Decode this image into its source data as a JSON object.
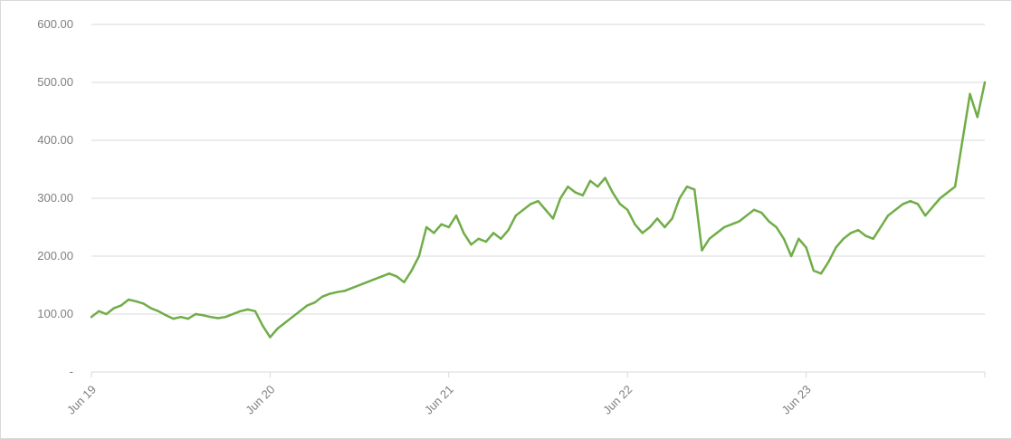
{
  "chart_data": {
    "type": "line",
    "title": "",
    "xlabel": "",
    "ylabel": "",
    "ylim": [
      0,
      600
    ],
    "y_ticks": [
      {
        "value": 0,
        "label": "-"
      },
      {
        "value": 100,
        "label": "100.00"
      },
      {
        "value": 200,
        "label": "200.00"
      },
      {
        "value": 300,
        "label": "300.00"
      },
      {
        "value": 400,
        "label": "400.00"
      },
      {
        "value": 500,
        "label": "500.00"
      },
      {
        "value": 600,
        "label": "600.00"
      }
    ],
    "x_ticks": [
      "Jun 19",
      "Jun 20",
      "Jun 21",
      "Jun 22",
      "Jun 23"
    ],
    "grid": "horizontal",
    "legend": "none",
    "color": "#70ad47",
    "x_unit": "months since Jun 19",
    "series": [
      {
        "x": [
          0,
          0.5,
          1,
          1.5,
          2,
          2.5,
          3,
          3.5,
          4,
          4.5,
          5,
          5.5,
          6,
          6.5,
          7,
          7.5,
          8,
          8.5,
          9,
          9.5,
          10,
          10.5,
          11,
          11.5,
          12,
          12.5,
          13,
          13.5,
          14,
          14.5,
          15,
          15.5,
          16,
          16.5,
          17,
          17.5,
          18,
          18.5,
          19,
          19.5,
          20,
          20.5,
          21,
          21.5,
          22,
          22.5,
          23,
          23.5,
          24,
          24.5,
          25,
          25.5,
          26,
          26.5,
          27,
          27.5,
          28,
          28.5,
          29,
          29.5,
          30,
          30.5,
          31,
          31.5,
          32,
          32.5,
          33,
          33.5,
          34,
          34.5,
          35,
          35.5,
          36,
          36.5,
          37,
          37.5,
          38,
          38.5,
          39,
          39.5,
          40,
          40.5,
          41,
          41.5,
          42,
          42.5,
          43,
          43.5,
          44,
          44.5,
          45,
          45.5,
          46,
          46.5,
          47,
          47.5,
          48,
          48.5,
          49,
          49.5,
          50,
          50.5,
          51,
          51.5,
          52,
          52.5,
          53,
          53.5,
          54,
          54.5,
          55,
          55.5,
          56,
          56.5,
          57,
          57.5,
          58,
          58.5,
          59,
          59.5,
          60
        ],
        "values": [
          95,
          105,
          100,
          110,
          115,
          125,
          122,
          118,
          110,
          105,
          98,
          92,
          95,
          92,
          100,
          98,
          95,
          93,
          95,
          100,
          105,
          108,
          105,
          80,
          60,
          75,
          85,
          95,
          105,
          115,
          120,
          130,
          135,
          138,
          140,
          145,
          150,
          155,
          160,
          165,
          170,
          165,
          155,
          175,
          200,
          250,
          240,
          255,
          250,
          270,
          240,
          220,
          230,
          225,
          240,
          230,
          245,
          270,
          280,
          290,
          295,
          280,
          265,
          300,
          320,
          310,
          305,
          330,
          320,
          335,
          310,
          290,
          280,
          255,
          240,
          250,
          265,
          250,
          265,
          300,
          320,
          315,
          210,
          230,
          240,
          250,
          255,
          260,
          270,
          280,
          275,
          260,
          250,
          230,
          200,
          230,
          215,
          175,
          170,
          190,
          215,
          230,
          240,
          245,
          235,
          230,
          250,
          270,
          280,
          290,
          295,
          290,
          270,
          285,
          300,
          310,
          320,
          400,
          480,
          440,
          500
        ]
      }
    ]
  }
}
